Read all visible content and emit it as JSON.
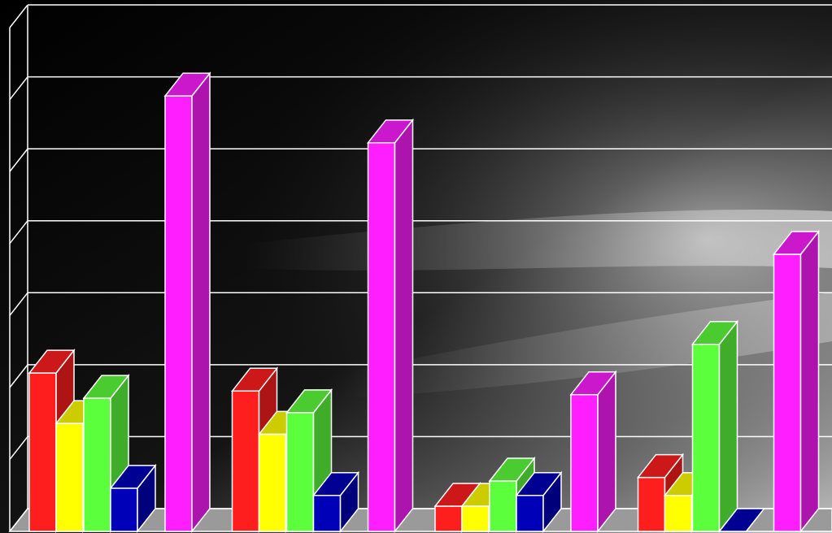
{
  "chart_data": {
    "type": "bar",
    "title": "",
    "xlabel": "",
    "ylabel": "",
    "grid": true,
    "legend": "none",
    "three_d": true,
    "background": "dark-gradient",
    "ylim": [
      0,
      7
    ],
    "categories": [
      "",
      "",
      "",
      ""
    ],
    "series": [
      {
        "color": "#ff1e1e",
        "values": [
          2.2,
          1.95,
          0.35,
          0.75
        ]
      },
      {
        "color": "#ffff00",
        "values": [
          1.5,
          1.35,
          0.35,
          0.5
        ]
      },
      {
        "color": "#5cff3c",
        "values": [
          1.85,
          1.65,
          0.7,
          2.6
        ]
      },
      {
        "color": "#0000b8",
        "values": [
          0.6,
          0.5,
          0.5,
          0.0
        ]
      },
      {
        "color": "#ff1eff",
        "values": [
          6.05,
          5.4,
          1.9,
          3.85
        ]
      }
    ]
  }
}
